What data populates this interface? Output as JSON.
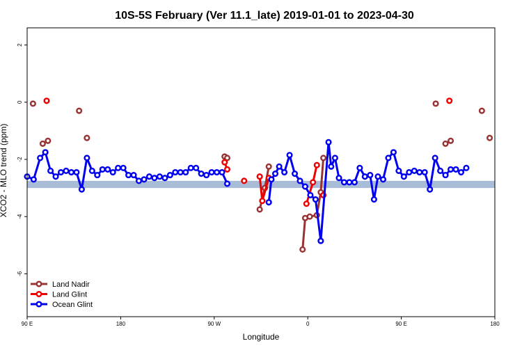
{
  "chart_data": {
    "type": "line",
    "title": "10S-5S February (Ver 11.1_late)   2019-01-01 to 2023-04-30",
    "xlabel": "Longitude",
    "ylabel": "XCO2 - MLO trend (ppm)",
    "xlim": [
      90,
      450
    ],
    "ylim": [
      -7.5,
      2.6
    ],
    "xticks": [
      {
        "value": 90,
        "label": "90 E"
      },
      {
        "value": 162,
        "label": "180"
      },
      {
        "value": 234,
        "label": "90 W"
      },
      {
        "value": 306,
        "label": "0"
      },
      {
        "value": 378,
        "label": "90 E"
      },
      {
        "value": 450,
        "label": "180"
      }
    ],
    "yticks": [
      {
        "value": 2,
        "label": "2"
      },
      {
        "value": 0,
        "label": "0"
      },
      {
        "value": -2,
        "label": "-2"
      },
      {
        "value": -4,
        "label": "-4"
      },
      {
        "value": -6,
        "label": "-6"
      }
    ],
    "band": {
      "y_min": -3.0,
      "y_max": -2.75,
      "color": "#a8bcd8"
    },
    "legend_position": "bottom-left",
    "series": [
      {
        "name": "Land Nadir",
        "color": "#993333",
        "segments": [
          [
            [
              94.5,
              -0.05
            ]
          ],
          [
            [
              102,
              -1.45
            ],
            [
              106,
              -1.35
            ]
          ],
          [
            [
              130,
              -0.3
            ]
          ],
          [
            [
              136,
              -1.25
            ]
          ],
          [
            [
              242,
              -1.9
            ],
            [
              244,
              -1.95
            ]
          ],
          [
            [
              269,
              -3.75
            ],
            [
              273,
              -3.0
            ],
            [
              276,
              -2.25
            ]
          ],
          [
            [
              302,
              -5.15
            ],
            [
              304,
              -4.05
            ],
            [
              307.5,
              -4.0
            ],
            [
              313,
              -3.95
            ],
            [
              316,
              -3.15
            ],
            [
              318,
              -1.95
            ]
          ],
          [
            [
              404.5,
              -0.05
            ]
          ],
          [
            [
              412,
              -1.45
            ],
            [
              416,
              -1.35
            ]
          ],
          [
            [
              440,
              -0.3
            ]
          ],
          [
            [
              446,
              -1.25
            ]
          ]
        ]
      },
      {
        "name": "Land Glint",
        "color": "#ee0000",
        "segments": [
          [
            [
              105,
              0.05
            ]
          ],
          [
            [
              242,
              -2.1
            ],
            [
              244,
              -2.35
            ]
          ],
          [
            [
              257,
              -2.75
            ]
          ],
          [
            [
              269,
              -2.6
            ],
            [
              271,
              -3.45
            ],
            [
              276,
              -2.65
            ]
          ],
          [
            [
              305,
              -3.55
            ],
            [
              310,
              -2.8
            ],
            [
              313,
              -2.2
            ]
          ],
          [
            [
              318,
              -3.25
            ]
          ],
          [
            [
              415,
              0.05
            ]
          ]
        ]
      },
      {
        "name": "Ocean Glint",
        "color": "#0000ee",
        "segments": [
          [
            [
              90,
              -2.6
            ],
            [
              95,
              -2.7
            ],
            [
              100,
              -1.95
            ],
            [
              104,
              -1.75
            ],
            [
              108,
              -2.4
            ],
            [
              112,
              -2.6
            ],
            [
              116,
              -2.45
            ],
            [
              120,
              -2.4
            ],
            [
              124,
              -2.45
            ],
            [
              128,
              -2.45
            ],
            [
              132,
              -3.05
            ],
            [
              136,
              -1.95
            ],
            [
              140,
              -2.4
            ],
            [
              144,
              -2.55
            ],
            [
              148,
              -2.35
            ],
            [
              152,
              -2.35
            ],
            [
              156,
              -2.45
            ],
            [
              160,
              -2.3
            ],
            [
              164,
              -2.3
            ],
            [
              168,
              -2.55
            ],
            [
              172,
              -2.55
            ],
            [
              176,
              -2.75
            ],
            [
              180,
              -2.7
            ],
            [
              184,
              -2.6
            ],
            [
              188,
              -2.65
            ],
            [
              192,
              -2.6
            ],
            [
              196,
              -2.65
            ],
            [
              200,
              -2.55
            ],
            [
              204,
              -2.45
            ],
            [
              208,
              -2.45
            ],
            [
              212,
              -2.45
            ],
            [
              216,
              -2.3
            ],
            [
              220,
              -2.3
            ],
            [
              224,
              -2.5
            ],
            [
              228,
              -2.55
            ],
            [
              232,
              -2.45
            ],
            [
              236,
              -2.45
            ],
            [
              240,
              -2.45
            ],
            [
              244,
              -2.85
            ]
          ],
          [
            [
              276,
              -3.5
            ],
            [
              278,
              -2.7
            ],
            [
              281,
              -2.5
            ],
            [
              284,
              -2.25
            ],
            [
              288,
              -2.45
            ],
            [
              292,
              -1.85
            ],
            [
              296,
              -2.5
            ],
            [
              300,
              -2.75
            ],
            [
              304,
              -2.95
            ],
            [
              308,
              -3.25
            ],
            [
              312,
              -3.4
            ],
            [
              316,
              -4.85
            ],
            [
              322,
              -1.4
            ],
            [
              324,
              -2.25
            ],
            [
              327,
              -1.95
            ],
            [
              330,
              -2.65
            ],
            [
              334,
              -2.8
            ],
            [
              338,
              -2.8
            ],
            [
              342,
              -2.8
            ],
            [
              346,
              -2.3
            ],
            [
              350,
              -2.6
            ],
            [
              354,
              -2.55
            ],
            [
              357,
              -3.4
            ],
            [
              360,
              -2.6
            ],
            [
              364,
              -2.7
            ],
            [
              368,
              -1.95
            ],
            [
              372,
              -1.75
            ],
            [
              376,
              -2.4
            ],
            [
              380,
              -2.6
            ],
            [
              384,
              -2.45
            ],
            [
              388,
              -2.4
            ],
            [
              392,
              -2.45
            ],
            [
              396,
              -2.45
            ],
            [
              400,
              -3.05
            ],
            [
              404,
              -1.95
            ],
            [
              408,
              -2.4
            ],
            [
              412,
              -2.55
            ],
            [
              416,
              -2.35
            ],
            [
              420,
              -2.35
            ],
            [
              424,
              -2.45
            ],
            [
              428,
              -2.3
            ]
          ]
        ]
      }
    ]
  }
}
